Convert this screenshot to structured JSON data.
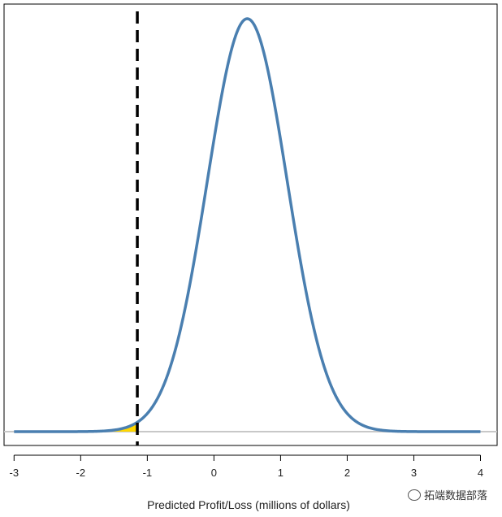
{
  "chart_data": {
    "type": "area",
    "xlabel": "Predicted Profit/Loss (millions of dollars)",
    "ylabel": "",
    "xlim": [
      -3.15,
      4.25
    ],
    "ylim": [
      0,
      1.05
    ],
    "xticks": [
      -3,
      -2,
      -1,
      0,
      1,
      2,
      3,
      4
    ],
    "distribution": {
      "kind": "normal",
      "mean": 0.5,
      "sd": 0.6
    },
    "curve_range": [
      -3,
      4
    ],
    "threshold": -1.15,
    "shaded_from": -2.5,
    "curve_color": "#4a7fb0",
    "shade_color": "#ffd700",
    "line_color": "#000000",
    "baseline_color": "#c8c8c8",
    "grid": false
  },
  "watermark": {
    "text": "拓端数据部落"
  }
}
